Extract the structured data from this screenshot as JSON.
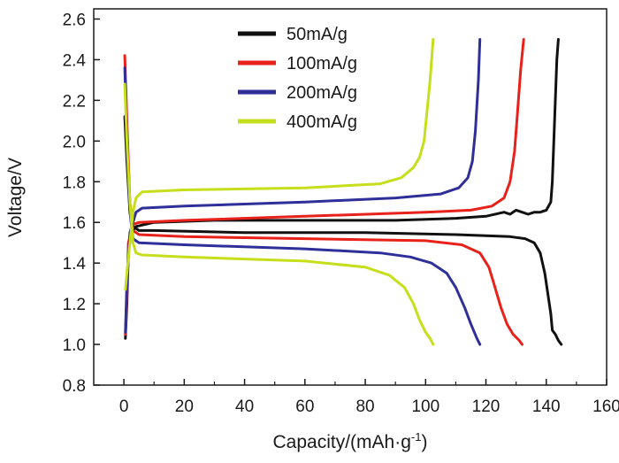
{
  "chart_data": {
    "type": "line",
    "title": "",
    "xlabel": "Capacity/(mAh·g",
    "xlabel_sup": "-1",
    "xlabel_suffix": ")",
    "ylabel": "Voltage/V",
    "xlim": [
      -10,
      160
    ],
    "ylim": [
      0.8,
      2.65
    ],
    "xticks": [
      0,
      20,
      40,
      60,
      80,
      100,
      120,
      140,
      160
    ],
    "xtick_labels": [
      "0",
      "20",
      "40",
      "60",
      "80",
      "100",
      "120",
      "140",
      "160"
    ],
    "yticks": [
      0.8,
      1.0,
      1.2,
      1.4,
      1.6,
      1.8,
      2.0,
      2.2,
      2.4,
      2.6
    ],
    "ytick_labels": [
      "0.8",
      "1.0",
      "1.2",
      "1.4",
      "1.6",
      "1.8",
      "2.0",
      "2.2",
      "2.4",
      "2.6"
    ],
    "grid": false,
    "legend_position": "top-center",
    "series": [
      {
        "name": "50mA/g",
        "color": "#111111",
        "charge": [
          [
            0.5,
            1.03
          ],
          [
            1,
            1.2
          ],
          [
            1.5,
            1.45
          ],
          [
            2.5,
            1.55
          ],
          [
            4,
            1.58
          ],
          [
            10,
            1.6
          ],
          [
            30,
            1.61
          ],
          [
            60,
            1.61
          ],
          [
            90,
            1.61
          ],
          [
            110,
            1.62
          ],
          [
            120,
            1.63
          ],
          [
            126,
            1.65
          ],
          [
            128,
            1.64
          ],
          [
            130,
            1.66
          ],
          [
            132,
            1.65
          ],
          [
            134,
            1.64
          ],
          [
            136,
            1.65
          ],
          [
            138,
            1.65
          ],
          [
            140,
            1.66
          ],
          [
            141.5,
            1.7
          ],
          [
            142,
            1.8
          ],
          [
            142.5,
            2.0
          ],
          [
            143,
            2.2
          ],
          [
            143.5,
            2.4
          ],
          [
            144,
            2.5
          ]
        ],
        "discharge": [
          [
            0.3,
            2.12
          ],
          [
            1,
            1.9
          ],
          [
            2,
            1.65
          ],
          [
            3,
            1.58
          ],
          [
            5,
            1.56
          ],
          [
            10,
            1.56
          ],
          [
            40,
            1.55
          ],
          [
            80,
            1.55
          ],
          [
            110,
            1.54
          ],
          [
            128,
            1.53
          ],
          [
            133,
            1.52
          ],
          [
            136,
            1.5
          ],
          [
            138,
            1.45
          ],
          [
            139.5,
            1.35
          ],
          [
            140.5,
            1.25
          ],
          [
            141.5,
            1.15
          ],
          [
            142,
            1.07
          ],
          [
            143,
            1.05
          ],
          [
            144,
            1.02
          ],
          [
            145,
            1.0
          ]
        ]
      },
      {
        "name": "100mA/g",
        "color": "#e8211b",
        "charge": [
          [
            0.5,
            1.05
          ],
          [
            1,
            1.25
          ],
          [
            1.5,
            1.5
          ],
          [
            3,
            1.59
          ],
          [
            5,
            1.6
          ],
          [
            20,
            1.61
          ],
          [
            60,
            1.63
          ],
          [
            100,
            1.65
          ],
          [
            115,
            1.66
          ],
          [
            122,
            1.68
          ],
          [
            126,
            1.72
          ],
          [
            128,
            1.8
          ],
          [
            129.5,
            1.95
          ],
          [
            130.5,
            2.15
          ],
          [
            131.5,
            2.35
          ],
          [
            132.5,
            2.5
          ]
        ],
        "discharge": [
          [
            0.3,
            2.42
          ],
          [
            1,
            2.1
          ],
          [
            2,
            1.7
          ],
          [
            3,
            1.56
          ],
          [
            5,
            1.54
          ],
          [
            20,
            1.53
          ],
          [
            60,
            1.52
          ],
          [
            100,
            1.51
          ],
          [
            112,
            1.49
          ],
          [
            118,
            1.45
          ],
          [
            121,
            1.38
          ],
          [
            123,
            1.28
          ],
          [
            125,
            1.18
          ],
          [
            127,
            1.1
          ],
          [
            129,
            1.05
          ],
          [
            131,
            1.02
          ],
          [
            132,
            1.0
          ]
        ]
      },
      {
        "name": "200mA/g",
        "color": "#2f2f9a",
        "charge": [
          [
            0.5,
            1.06
          ],
          [
            1,
            1.3
          ],
          [
            2,
            1.55
          ],
          [
            4,
            1.65
          ],
          [
            6,
            1.67
          ],
          [
            20,
            1.68
          ],
          [
            60,
            1.7
          ],
          [
            90,
            1.72
          ],
          [
            105,
            1.74
          ],
          [
            111,
            1.77
          ],
          [
            114,
            1.82
          ],
          [
            115.5,
            1.9
          ],
          [
            116.5,
            2.05
          ],
          [
            117.5,
            2.3
          ],
          [
            118,
            2.5
          ]
        ],
        "discharge": [
          [
            0.3,
            2.36
          ],
          [
            1,
            2.0
          ],
          [
            2,
            1.65
          ],
          [
            3,
            1.52
          ],
          [
            5,
            1.5
          ],
          [
            20,
            1.49
          ],
          [
            60,
            1.47
          ],
          [
            85,
            1.45
          ],
          [
            95,
            1.43
          ],
          [
            102,
            1.4
          ],
          [
            107,
            1.35
          ],
          [
            110,
            1.28
          ],
          [
            113,
            1.18
          ],
          [
            115,
            1.1
          ],
          [
            117,
            1.03
          ],
          [
            118,
            1.0
          ]
        ]
      },
      {
        "name": "400mA/g",
        "color": "#c6de1b",
        "charge": [
          [
            0.5,
            1.27
          ],
          [
            1,
            1.35
          ],
          [
            2,
            1.5
          ],
          [
            3,
            1.65
          ],
          [
            4,
            1.72
          ],
          [
            6,
            1.75
          ],
          [
            20,
            1.76
          ],
          [
            60,
            1.77
          ],
          [
            85,
            1.79
          ],
          [
            92,
            1.82
          ],
          [
            96,
            1.87
          ],
          [
            98,
            1.92
          ],
          [
            99.5,
            2.0
          ],
          [
            100.5,
            2.15
          ],
          [
            101.5,
            2.3
          ],
          [
            102,
            2.4
          ],
          [
            102.5,
            2.5
          ]
        ],
        "discharge": [
          [
            0.3,
            2.28
          ],
          [
            1,
            2.0
          ],
          [
            2,
            1.7
          ],
          [
            3,
            1.5
          ],
          [
            4,
            1.45
          ],
          [
            6,
            1.44
          ],
          [
            20,
            1.43
          ],
          [
            60,
            1.41
          ],
          [
            80,
            1.38
          ],
          [
            88,
            1.34
          ],
          [
            93,
            1.28
          ],
          [
            96,
            1.2
          ],
          [
            98,
            1.12
          ],
          [
            100,
            1.06
          ],
          [
            101.5,
            1.03
          ],
          [
            102.5,
            1.0
          ]
        ]
      }
    ]
  }
}
